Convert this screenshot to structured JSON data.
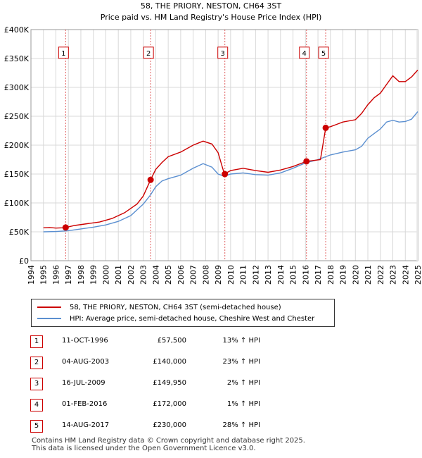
{
  "chart_data": {
    "type": "line",
    "title": "58, THE PRIORY, NESTON, CH64 3ST",
    "subtitle": "Price paid vs. HM Land Registry's House Price Index (HPI)",
    "xlim": [
      1994,
      2025
    ],
    "ylim": [
      0,
      400000
    ],
    "x_ticks": [
      "1994",
      "1995",
      "1996",
      "1997",
      "1998",
      "1999",
      "2000",
      "2001",
      "2002",
      "2003",
      "2004",
      "2005",
      "2006",
      "2007",
      "2008",
      "2009",
      "2010",
      "2011",
      "2012",
      "2013",
      "2014",
      "2015",
      "2016",
      "2017",
      "2018",
      "2019",
      "2020",
      "2021",
      "2022",
      "2023",
      "2024",
      "2025"
    ],
    "y_ticks": [
      {
        "value": 0,
        "label": "£0"
      },
      {
        "value": 50000,
        "label": "£50K"
      },
      {
        "value": 100000,
        "label": "£100K"
      },
      {
        "value": 150000,
        "label": "£150K"
      },
      {
        "value": 200000,
        "label": "£200K"
      },
      {
        "value": 250000,
        "label": "£250K"
      },
      {
        "value": 300000,
        "label": "£300K"
      },
      {
        "value": 350000,
        "label": "£350K"
      },
      {
        "value": 400000,
        "label": "£400K"
      }
    ],
    "grid": true,
    "colors": {
      "property": "#cc0000",
      "hpi": "#5b8fd0",
      "marker_box": "#cc0000",
      "vline": "#e06060"
    },
    "series": [
      {
        "name": "58, THE PRIORY, NESTON, CH64 3ST (semi-detached house)",
        "color": "#cc0000",
        "points": [
          [
            1995.0,
            57000
          ],
          [
            1995.5,
            57500
          ],
          [
            1996.0,
            56500
          ],
          [
            1996.5,
            57000
          ],
          [
            1996.78,
            57500
          ],
          [
            1997.5,
            61000
          ],
          [
            1998.5,
            64000
          ],
          [
            1999.5,
            67000
          ],
          [
            2000.5,
            73000
          ],
          [
            2001.5,
            83000
          ],
          [
            2002.5,
            98000
          ],
          [
            2003.0,
            112000
          ],
          [
            2003.59,
            140000
          ],
          [
            2004.0,
            158000
          ],
          [
            2004.5,
            170000
          ],
          [
            2005.0,
            180000
          ],
          [
            2006.0,
            188000
          ],
          [
            2007.0,
            200000
          ],
          [
            2007.8,
            207000
          ],
          [
            2008.5,
            202000
          ],
          [
            2009.0,
            187000
          ],
          [
            2009.5,
            149950
          ],
          [
            2010.0,
            156000
          ],
          [
            2011.0,
            160000
          ],
          [
            2012.0,
            156000
          ],
          [
            2013.0,
            153000
          ],
          [
            2014.0,
            157000
          ],
          [
            2015.0,
            163000
          ],
          [
            2016.08,
            172000
          ],
          [
            2016.5,
            173000
          ],
          [
            2017.2,
            175000
          ],
          [
            2017.62,
            230000
          ],
          [
            2018.0,
            232000
          ],
          [
            2018.5,
            236000
          ],
          [
            2019.0,
            240000
          ],
          [
            2020.0,
            244000
          ],
          [
            2020.5,
            255000
          ],
          [
            2021.0,
            270000
          ],
          [
            2021.5,
            282000
          ],
          [
            2022.0,
            290000
          ],
          [
            2022.5,
            305000
          ],
          [
            2023.0,
            320000
          ],
          [
            2023.5,
            310000
          ],
          [
            2024.0,
            310000
          ],
          [
            2024.5,
            318000
          ],
          [
            2025.0,
            330000
          ]
        ]
      },
      {
        "name": "HPI: Average price, semi-detached house, Cheshire West and Chester",
        "color": "#5b8fd0",
        "points": [
          [
            1995.0,
            50000
          ],
          [
            1996.0,
            50500
          ],
          [
            1997.0,
            52000
          ],
          [
            1998.0,
            55000
          ],
          [
            1999.0,
            58000
          ],
          [
            2000.0,
            62000
          ],
          [
            2001.0,
            68000
          ],
          [
            2002.0,
            78000
          ],
          [
            2003.0,
            98000
          ],
          [
            2003.59,
            114000
          ],
          [
            2004.0,
            128000
          ],
          [
            2004.5,
            138000
          ],
          [
            2005.0,
            142000
          ],
          [
            2006.0,
            148000
          ],
          [
            2007.0,
            160000
          ],
          [
            2007.8,
            168000
          ],
          [
            2008.5,
            162000
          ],
          [
            2009.0,
            150000
          ],
          [
            2009.5,
            146000
          ],
          [
            2010.0,
            150000
          ],
          [
            2011.0,
            152000
          ],
          [
            2012.0,
            149000
          ],
          [
            2013.0,
            148000
          ],
          [
            2014.0,
            152000
          ],
          [
            2015.0,
            160000
          ],
          [
            2016.08,
            170000
          ],
          [
            2016.5,
            172000
          ],
          [
            2017.0,
            175000
          ],
          [
            2017.62,
            180000
          ],
          [
            2018.0,
            183000
          ],
          [
            2019.0,
            188000
          ],
          [
            2020.0,
            192000
          ],
          [
            2020.5,
            198000
          ],
          [
            2021.0,
            212000
          ],
          [
            2021.5,
            220000
          ],
          [
            2022.0,
            228000
          ],
          [
            2022.5,
            240000
          ],
          [
            2023.0,
            243000
          ],
          [
            2023.5,
            240000
          ],
          [
            2024.0,
            241000
          ],
          [
            2024.5,
            245000
          ],
          [
            2025.0,
            258000
          ]
        ]
      }
    ],
    "sales": [
      {
        "id": "1",
        "x": 1996.78,
        "price": 57500
      },
      {
        "id": "2",
        "x": 2003.59,
        "price": 140000
      },
      {
        "id": "3",
        "x": 2009.54,
        "price": 149950
      },
      {
        "id": "4",
        "x": 2016.08,
        "price": 172000
      },
      {
        "id": "5",
        "x": 2017.62,
        "price": 230000
      }
    ],
    "marker_label_value": 360000
  },
  "legend": {
    "property_label": "58, THE PRIORY, NESTON, CH64 3ST (semi-detached house)",
    "hpi_label": "HPI: Average price, semi-detached house, Cheshire West and Chester"
  },
  "transactions": [
    {
      "num": "1",
      "date": "11-OCT-1996",
      "price": "£57,500",
      "hpi": "13% ↑ HPI"
    },
    {
      "num": "2",
      "date": "04-AUG-2003",
      "price": "£140,000",
      "hpi": "23% ↑ HPI"
    },
    {
      "num": "3",
      "date": "16-JUL-2009",
      "price": "£149,950",
      "hpi": "2% ↑ HPI"
    },
    {
      "num": "4",
      "date": "01-FEB-2016",
      "price": "£172,000",
      "hpi": "1% ↑ HPI"
    },
    {
      "num": "5",
      "date": "14-AUG-2017",
      "price": "£230,000",
      "hpi": "28% ↑ HPI"
    }
  ],
  "footer": {
    "line1": "Contains HM Land Registry data © Crown copyright and database right 2025.",
    "line2": "This data is licensed under the Open Government Licence v3.0."
  }
}
